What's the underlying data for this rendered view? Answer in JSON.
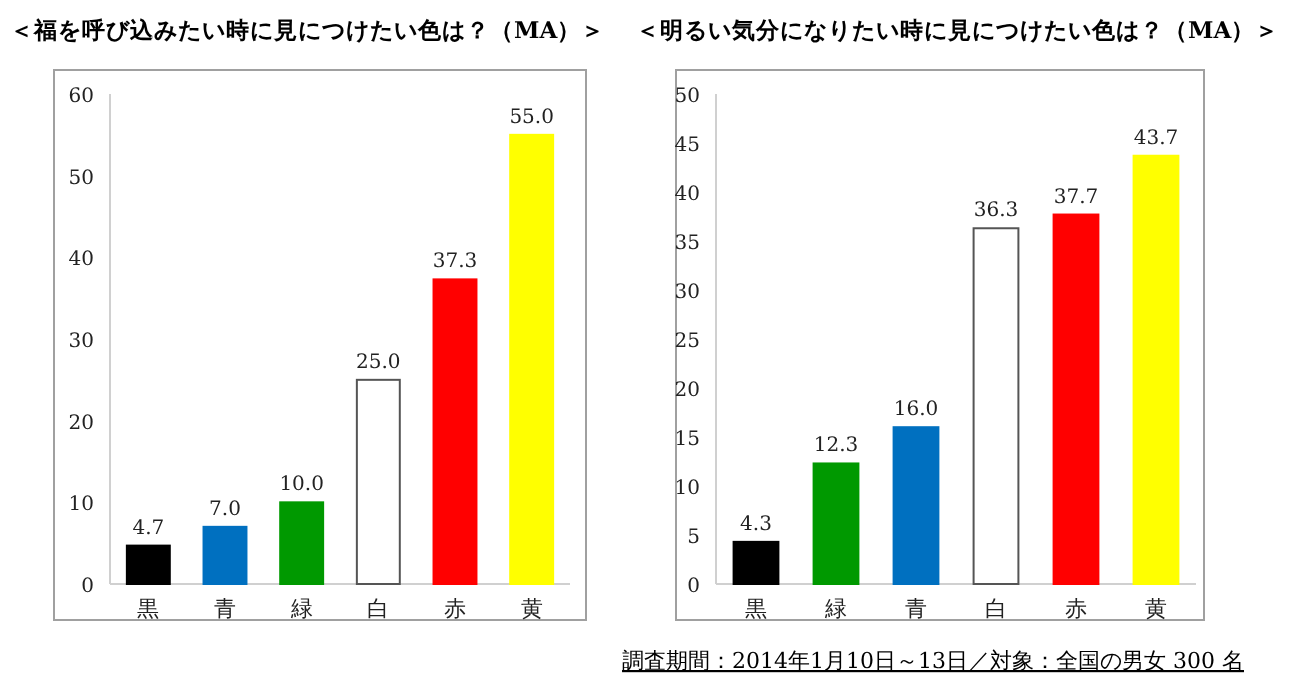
{
  "chart_data": [
    {
      "type": "bar",
      "title": "＜福を呼び込みたい時に見につけたい色は？（MA）＞",
      "categories": [
        "黒",
        "青",
        "緑",
        "白",
        "赤",
        "黄"
      ],
      "values": [
        4.7,
        7.0,
        10.0,
        25.0,
        37.3,
        55.0
      ],
      "value_labels": [
        "4.7",
        "7.0",
        "10.0",
        "25.0",
        "37.3",
        "55.0"
      ],
      "colors": [
        "#000000",
        "#0070c0",
        "#009900",
        "#ffffff",
        "#ff0000",
        "#ffff00"
      ],
      "ylim": [
        0,
        60
      ],
      "yticks": [
        0,
        10,
        20,
        30,
        40,
        50,
        60
      ]
    },
    {
      "type": "bar",
      "title": "＜明るい気分になりたい時に見につけたい色は？（MA）＞",
      "categories": [
        "黒",
        "緑",
        "青",
        "白",
        "赤",
        "黄"
      ],
      "values": [
        4.3,
        12.3,
        16.0,
        36.3,
        37.7,
        43.7
      ],
      "value_labels": [
        "4.3",
        "12.3",
        "16.0",
        "36.3",
        "37.7",
        "43.7"
      ],
      "colors": [
        "#000000",
        "#009900",
        "#0070c0",
        "#ffffff",
        "#ff0000",
        "#ffff00"
      ],
      "ylim": [
        0,
        50
      ],
      "yticks": [
        0,
        5,
        10,
        15,
        20,
        25,
        30,
        35,
        40,
        45,
        50
      ],
      "annotations": [
        "調査期間：2014年1月10日～13日／対象：全国の男女 300 名"
      ]
    }
  ]
}
